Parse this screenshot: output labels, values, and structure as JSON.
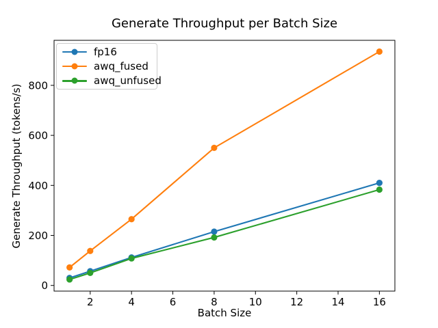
{
  "chart_data": {
    "type": "line",
    "title": "Generate Throughput per Batch Size",
    "xlabel": "Batch Size",
    "ylabel": "Generate Throughput (tokens/s)",
    "x": [
      1,
      2,
      4,
      8,
      16
    ],
    "series": [
      {
        "name": "fp16",
        "color": "#1f77b4",
        "values": [
          30,
          57,
          112,
          215,
          410
        ]
      },
      {
        "name": "awq_fused",
        "color": "#ff7f0e",
        "values": [
          72,
          138,
          265,
          550,
          935
        ]
      },
      {
        "name": "awq_unfused",
        "color": "#2ca02c",
        "values": [
          24,
          50,
          108,
          192,
          383
        ]
      }
    ],
    "x_ticks": [
      2,
      4,
      6,
      8,
      10,
      12,
      14,
      16
    ],
    "y_ticks": [
      0,
      200,
      400,
      600,
      800
    ],
    "xlim": [
      0.25,
      16.75
    ],
    "ylim": [
      -22.6,
      980
    ],
    "grid": false,
    "marker": "o",
    "legend_position": "upper left",
    "frame_color": "#000000",
    "background_color": "#ffffff"
  }
}
